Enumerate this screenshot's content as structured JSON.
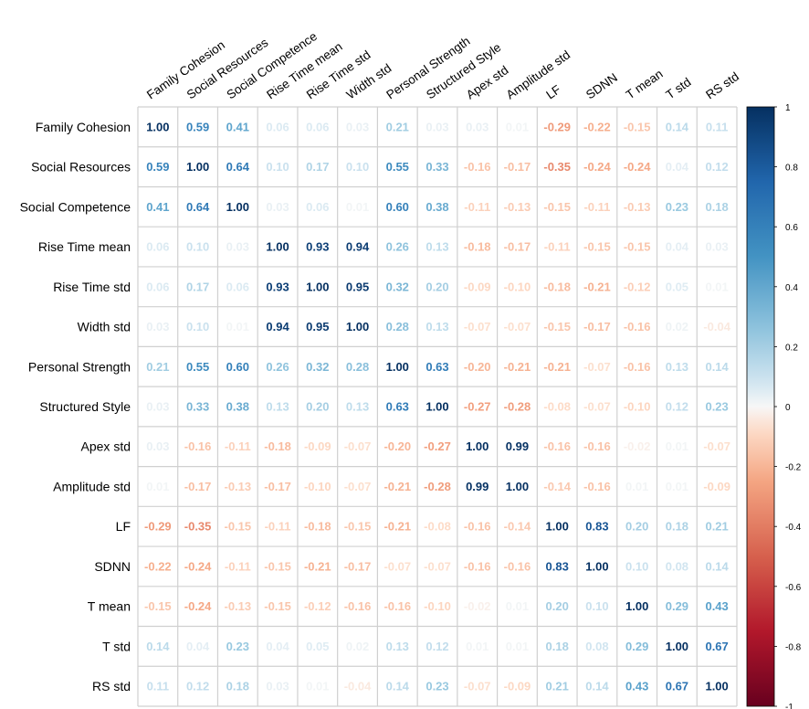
{
  "chart_data": {
    "type": "heatmap",
    "variables": [
      "Family Cohesion",
      "Social Resources",
      "Social Competence",
      "Rise Time mean",
      "Rise Time std",
      "Width std",
      "Personal Strength",
      "Structured Style",
      "Apex std",
      "Amplitude std",
      "LF",
      "SDNN",
      "T mean",
      "T std",
      "RS std"
    ],
    "matrix": [
      [
        1.0,
        0.59,
        0.41,
        0.06,
        0.06,
        0.03,
        0.21,
        0.03,
        0.03,
        0.01,
        -0.29,
        -0.22,
        -0.15,
        0.14,
        0.11
      ],
      [
        0.59,
        1.0,
        0.64,
        0.1,
        0.17,
        0.1,
        0.55,
        0.33,
        -0.16,
        -0.17,
        -0.35,
        -0.24,
        -0.24,
        0.04,
        0.12
      ],
      [
        0.41,
        0.64,
        1.0,
        0.03,
        0.06,
        0.01,
        0.6,
        0.38,
        -0.11,
        -0.13,
        -0.15,
        -0.11,
        -0.13,
        0.23,
        0.18
      ],
      [
        0.06,
        0.1,
        0.03,
        1.0,
        0.93,
        0.94,
        0.26,
        0.13,
        -0.18,
        -0.17,
        -0.11,
        -0.15,
        -0.15,
        0.04,
        0.03
      ],
      [
        0.06,
        0.17,
        0.06,
        0.93,
        1.0,
        0.95,
        0.32,
        0.2,
        -0.09,
        -0.1,
        -0.18,
        -0.21,
        -0.12,
        0.05,
        0.01
      ],
      [
        0.03,
        0.1,
        0.01,
        0.94,
        0.95,
        1.0,
        0.28,
        0.13,
        -0.07,
        -0.07,
        -0.15,
        -0.17,
        -0.16,
        0.02,
        -0.04
      ],
      [
        0.21,
        0.55,
        0.6,
        0.26,
        0.32,
        0.28,
        1.0,
        0.63,
        -0.2,
        -0.21,
        -0.21,
        -0.07,
        -0.16,
        0.13,
        0.14
      ],
      [
        0.03,
        0.33,
        0.38,
        0.13,
        0.2,
        0.13,
        0.63,
        1.0,
        -0.27,
        -0.28,
        -0.08,
        -0.07,
        -0.1,
        0.12,
        0.23
      ],
      [
        0.03,
        -0.16,
        -0.11,
        -0.18,
        -0.09,
        -0.07,
        -0.2,
        -0.27,
        1.0,
        0.99,
        -0.16,
        -0.16,
        -0.02,
        0.01,
        -0.07
      ],
      [
        0.01,
        -0.17,
        -0.13,
        -0.17,
        -0.1,
        -0.07,
        -0.21,
        -0.28,
        0.99,
        1.0,
        -0.14,
        -0.16,
        0.01,
        0.01,
        -0.09
      ],
      [
        -0.29,
        -0.35,
        -0.15,
        -0.11,
        -0.18,
        -0.15,
        -0.21,
        -0.08,
        -0.16,
        -0.14,
        1.0,
        0.83,
        0.2,
        0.18,
        0.21
      ],
      [
        -0.22,
        -0.24,
        -0.11,
        -0.15,
        -0.21,
        -0.17,
        -0.07,
        -0.07,
        -0.16,
        -0.16,
        0.83,
        1.0,
        0.1,
        0.08,
        0.14
      ],
      [
        -0.15,
        -0.24,
        -0.13,
        -0.15,
        -0.12,
        -0.16,
        -0.16,
        -0.1,
        -0.02,
        0.01,
        0.2,
        0.1,
        1.0,
        0.29,
        0.43
      ],
      [
        0.14,
        0.04,
        0.23,
        0.04,
        0.05,
        0.02,
        0.13,
        0.12,
        0.01,
        0.01,
        0.18,
        0.08,
        0.29,
        1.0,
        0.67
      ],
      [
        0.11,
        0.12,
        0.18,
        0.03,
        0.01,
        -0.04,
        0.14,
        0.23,
        -0.07,
        -0.09,
        0.21,
        0.14,
        0.43,
        0.67,
        1.0
      ]
    ],
    "value_range": [
      -1,
      1
    ],
    "colorbar": {
      "ticks": [
        1,
        0.8,
        0.6,
        0.4,
        0.2,
        0,
        -0.2,
        -0.4,
        -0.6,
        -0.8,
        -1
      ],
      "low_color": "#67001F",
      "mid_color": "#F7F7F7",
      "high_color": "#053061"
    },
    "grid": true,
    "legend_position": "right"
  }
}
